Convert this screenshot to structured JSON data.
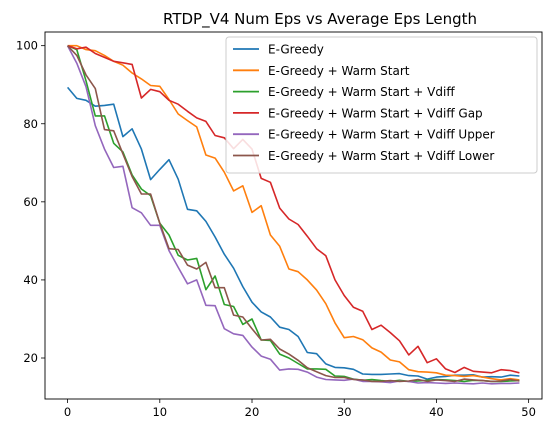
{
  "chart_data": {
    "type": "line",
    "title": "RTDP_V4 Num Eps vs Average Eps Length",
    "xlabel": "",
    "ylabel": "",
    "xlim": [
      -2.45,
      51.45
    ],
    "ylim": [
      9.5,
      103.5
    ],
    "xticks": [
      0,
      10,
      20,
      30,
      40,
      50
    ],
    "yticks": [
      20,
      40,
      60,
      80,
      100
    ],
    "grid": false,
    "legend_position": "top-right",
    "x": [
      0,
      1,
      2,
      3,
      4,
      5,
      6,
      7,
      8,
      9,
      10,
      11,
      12,
      13,
      14,
      15,
      16,
      17,
      18,
      19,
      20,
      21,
      22,
      23,
      24,
      25,
      26,
      27,
      28,
      29,
      30,
      31,
      32,
      33,
      34,
      35,
      36,
      37,
      38,
      39,
      40,
      41,
      42,
      43,
      44,
      45,
      46,
      47,
      48,
      49
    ],
    "series": [
      {
        "name": "E-Greedy",
        "color": "#1f77b4",
        "values": [
          89.3,
          86.5,
          86.0,
          84.5,
          84.7,
          85.0,
          76.7,
          78.7,
          73.5,
          65.7,
          68.3,
          70.8,
          65.8,
          58.1,
          57.7,
          55.0,
          51.0,
          46.6,
          43.0,
          38.3,
          34.3,
          31.8,
          30.5,
          27.9,
          27.3,
          25.5,
          21.4,
          21.1,
          18.5,
          17.6,
          17.5,
          17.1,
          15.9,
          15.8,
          15.8,
          15.9,
          16.0,
          15.5,
          15.4,
          14.6,
          15.1,
          15.3,
          15.6,
          15.6,
          15.7,
          15.1,
          15.2,
          15.1,
          15.6,
          15.4
        ]
      },
      {
        "name": "E-Greedy + Warm Start",
        "color": "#ff7f0e",
        "values": [
          100.0,
          100.0,
          99.0,
          98.7,
          97.5,
          96.0,
          95.0,
          93.0,
          91.5,
          89.8,
          89.6,
          86.2,
          82.5,
          80.8,
          79.2,
          72.0,
          71.2,
          67.6,
          62.8,
          64.1,
          57.3,
          59.0,
          51.5,
          48.6,
          42.8,
          42.1,
          40.0,
          37.4,
          33.9,
          29.0,
          25.2,
          25.5,
          24.7,
          22.6,
          21.5,
          19.5,
          19.0,
          17.0,
          16.5,
          16.4,
          16.2,
          15.6,
          15.5,
          15.3,
          15.5,
          15.1,
          14.7,
          14.4,
          14.7,
          14.4
        ]
      },
      {
        "name": "E-Greedy + Warm Start + Vdiff",
        "color": "#2ca02c",
        "values": [
          100.0,
          99.0,
          91.0,
          82.0,
          82.0,
          75.0,
          72.8,
          66.9,
          63.3,
          61.6,
          54.5,
          51.5,
          46.3,
          45.1,
          45.5,
          37.5,
          41.0,
          33.7,
          33.2,
          28.6,
          30.0,
          24.6,
          24.5,
          21.0,
          20.0,
          18.6,
          17.2,
          17.2,
          17.1,
          15.4,
          15.3,
          14.6,
          14.3,
          14.5,
          14.2,
          14.0,
          14.3,
          14.0,
          14.1,
          14.3,
          14.5,
          14.4,
          14.2,
          14.0,
          14.3,
          14.2,
          14.0,
          14.0,
          14.1,
          14.2
        ]
      },
      {
        "name": "E-Greedy + Warm Start + Vdiff Gap",
        "color": "#d62728",
        "values": [
          100.0,
          99.2,
          99.6,
          98.0,
          97.0,
          96.0,
          95.6,
          95.2,
          86.6,
          88.8,
          88.2,
          86.0,
          85.0,
          83.2,
          81.5,
          80.6,
          77.0,
          76.4,
          73.6,
          76.0,
          73.5,
          66.0,
          65.0,
          58.4,
          55.6,
          54.2,
          51.2,
          48.0,
          46.2,
          40.0,
          36.0,
          33.0,
          32.0,
          27.3,
          28.4,
          26.5,
          24.4,
          20.8,
          23.0,
          18.8,
          19.8,
          17.2,
          16.3,
          17.6,
          16.6,
          16.4,
          16.2,
          17.0,
          16.8,
          16.2
        ]
      },
      {
        "name": "E-Greedy + Warm Start + Vdiff Upper",
        "color": "#9467bd",
        "values": [
          100.0,
          95.5,
          89.5,
          79.5,
          73.5,
          68.8,
          69.1,
          58.5,
          57.2,
          54.0,
          54.0,
          47.5,
          43.2,
          39.0,
          40.0,
          33.5,
          33.4,
          27.5,
          26.2,
          25.8,
          22.8,
          20.5,
          19.7,
          16.9,
          17.2,
          17.1,
          16.4,
          15.1,
          14.5,
          14.4,
          14.3,
          14.6,
          14.0,
          14.0,
          13.9,
          13.7,
          14.1,
          14.0,
          13.6,
          13.7,
          13.6,
          13.5,
          13.6,
          13.5,
          13.4,
          13.6,
          13.4,
          13.5,
          13.5,
          13.6
        ]
      },
      {
        "name": "E-Greedy + Warm Start + Vdiff Lower",
        "color": "#8c564b",
        "values": [
          100.0,
          97.5,
          92.5,
          89.0,
          78.5,
          78.2,
          72.3,
          66.5,
          62.0,
          62.0,
          54.5,
          48.0,
          47.8,
          43.8,
          42.8,
          44.5,
          38.0,
          38.0,
          31.0,
          30.5,
          27.5,
          24.6,
          24.8,
          22.3,
          21.0,
          19.4,
          17.5,
          16.5,
          15.5,
          15.0,
          15.0,
          14.5,
          14.4,
          14.0,
          14.0,
          14.2,
          14.0,
          14.1,
          14.5,
          14.0,
          14.4,
          14.2,
          14.0,
          14.6,
          14.4,
          14.2,
          14.0,
          14.1,
          14.5,
          14.1
        ]
      }
    ]
  }
}
